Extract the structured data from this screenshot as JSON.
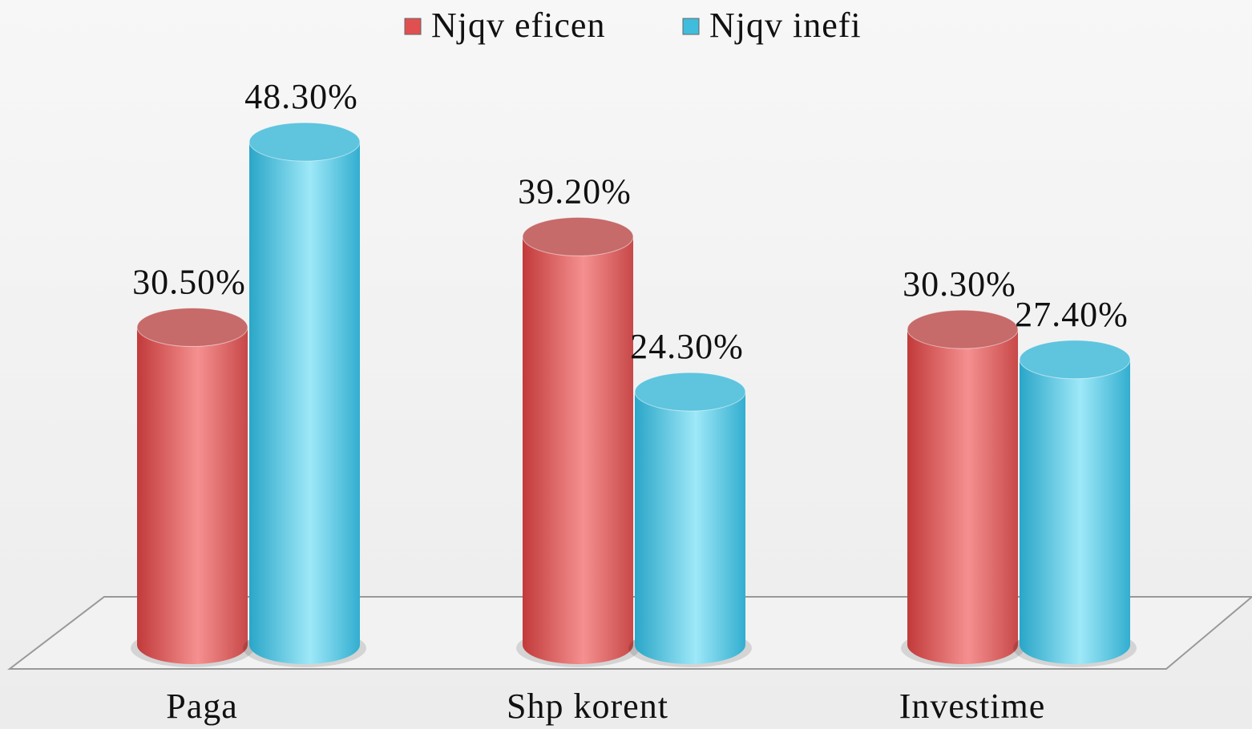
{
  "chart_data": {
    "type": "bar3d",
    "categories": [
      "Paga",
      "Shp korent",
      "Investime"
    ],
    "series": [
      {
        "name": "Njqv eficen",
        "color": "#e05050",
        "values": [
          30.5,
          39.2,
          30.3
        ],
        "value_labels": [
          "30.50%",
          "39.20%",
          "30.30%"
        ]
      },
      {
        "name": "Njqv inefi",
        "color": "#40bcdc",
        "values": [
          48.3,
          24.3,
          27.4
        ],
        "value_labels": [
          "48.30%",
          "24.30%",
          "27.40%"
        ]
      }
    ],
    "legend": "top"
  }
}
